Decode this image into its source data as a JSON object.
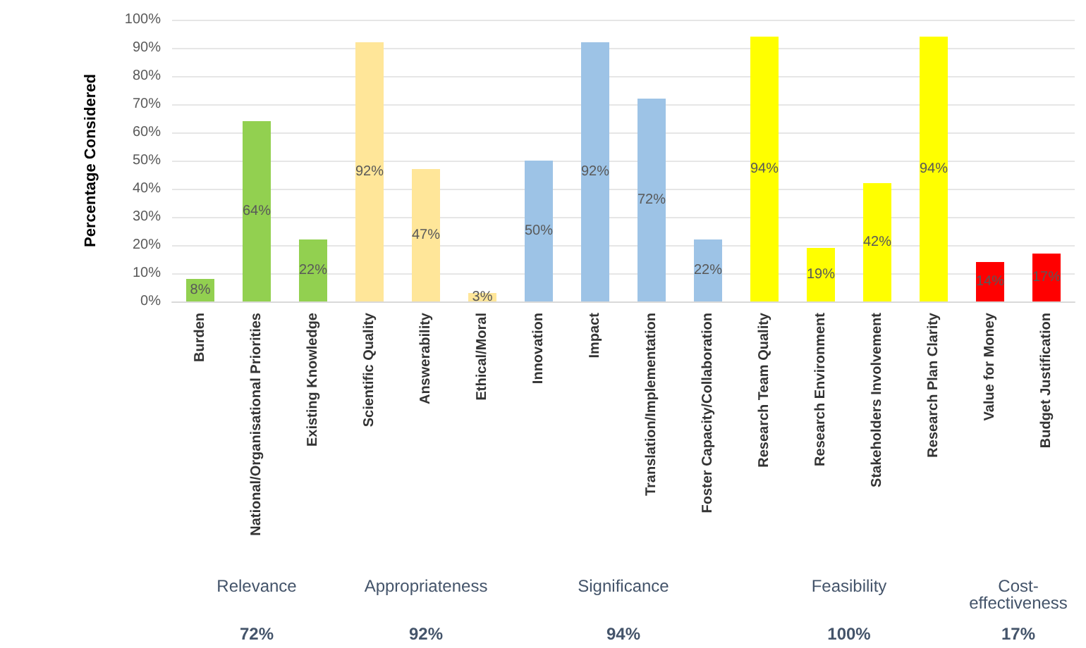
{
  "chart_data": {
    "type": "bar",
    "ylabel": "Percentage Considered",
    "categories": [
      "Burden",
      "National/Organisational Priorities",
      "Existing Knowledge",
      "Scientific Quality",
      "Answerability",
      "Ethical/Moral",
      "Innovation",
      "Impact",
      "Translation/Implementation",
      "Foster Capacity/Collaboration",
      "Research Team Quality",
      "Research Environment",
      "Stakeholders Involvement",
      "Research Plan Clarity",
      "Value for Money",
      "Budget Justification"
    ],
    "values": [
      8,
      64,
      22,
      92,
      47,
      3,
      50,
      92,
      72,
      22,
      94,
      19,
      42,
      94,
      14,
      17
    ],
    "value_labels": [
      "8%",
      "64%",
      "22%",
      "92%",
      "47%",
      "3%",
      "50%",
      "92%",
      "72%",
      "22%",
      "94%",
      "19%",
      "42%",
      "94%",
      "14%",
      "17%"
    ],
    "colors": [
      "#92d050",
      "#92d050",
      "#92d050",
      "#ffe699",
      "#ffe699",
      "#ffe699",
      "#9dc3e6",
      "#9dc3e6",
      "#9dc3e6",
      "#9dc3e6",
      "#ffff00",
      "#ffff00",
      "#ffff00",
      "#ffff00",
      "#ff0000",
      "#ff0000"
    ],
    "ylim": [
      0,
      100
    ],
    "yticks": [
      {
        "value": 0,
        "label": "0%"
      },
      {
        "value": 10,
        "label": "10%"
      },
      {
        "value": 20,
        "label": "20%"
      },
      {
        "value": 30,
        "label": "30%"
      },
      {
        "value": 40,
        "label": "40%"
      },
      {
        "value": 50,
        "label": "50%"
      },
      {
        "value": 60,
        "label": "60%"
      },
      {
        "value": 70,
        "label": "70%"
      },
      {
        "value": 80,
        "label": "80%"
      },
      {
        "value": 90,
        "label": "90%"
      },
      {
        "value": 100,
        "label": "100%"
      }
    ],
    "grid": "y",
    "annotations": [
      "Relevance",
      "72%",
      "Appropriateness",
      "92%",
      "Significance",
      "94%",
      "Feasibility",
      "100%",
      "Cost-\neffectiveness",
      "17%"
    ]
  }
}
